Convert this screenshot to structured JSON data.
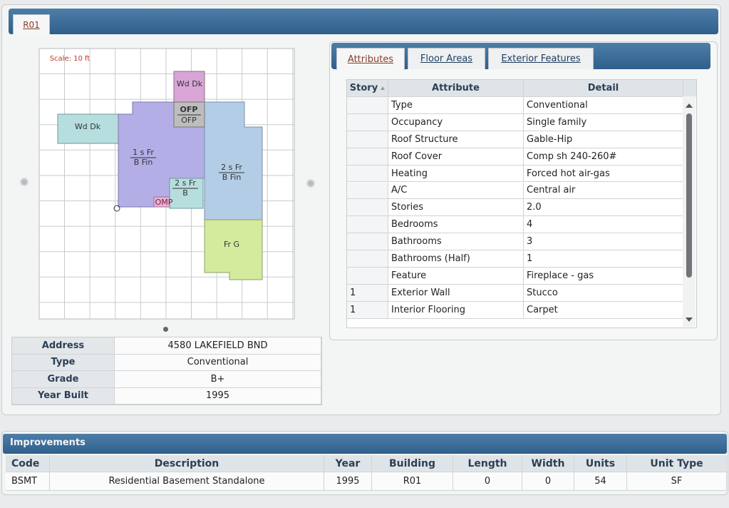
{
  "tab": "R01",
  "sketch": {
    "scale": "Scale: 10 ft",
    "labels": [
      "Wd Dk",
      "OFP",
      "OFP",
      "Wd Dk",
      "1 s Fr",
      "B Fin",
      "2 s Fr",
      "B Fin",
      "2 s Fr",
      "B",
      "OMP",
      "Fr G"
    ]
  },
  "summary": {
    "rows": [
      [
        "Address",
        "4580 LAKEFIELD BND"
      ],
      [
        "Type",
        "Conventional"
      ],
      [
        "Grade",
        "B+"
      ],
      [
        "Year Built",
        "1995"
      ]
    ]
  },
  "attributes": {
    "tabs": [
      "Attributes",
      "Floor Areas",
      "Exterior Features"
    ],
    "headers": [
      "Story",
      "Attribute",
      "Detail"
    ],
    "rows": [
      {
        "attribute": "Type",
        "detail": "Conventional"
      },
      {
        "attribute": "Occupancy",
        "detail": "Single family"
      },
      {
        "attribute": "Roof Structure",
        "detail": "Gable-Hip"
      },
      {
        "attribute": "Roof Cover",
        "detail": "Comp sh 240-260#"
      },
      {
        "attribute": "Heating",
        "detail": "Forced hot air-gas"
      },
      {
        "attribute": "A/C",
        "detail": "Central air"
      },
      {
        "attribute": "Stories",
        "detail": "2.0"
      },
      {
        "attribute": "Bedrooms",
        "detail": "4"
      },
      {
        "attribute": "Bathrooms",
        "detail": "3"
      },
      {
        "attribute": "Bathrooms (Half)",
        "detail": "1"
      },
      {
        "attribute": "Feature",
        "detail": "Fireplace - gas"
      },
      {
        "story": "1",
        "attribute": "Exterior Wall",
        "detail": "Stucco"
      },
      {
        "story": "1",
        "attribute": "Interior Flooring",
        "detail": "Carpet"
      }
    ]
  },
  "improvements": {
    "title": "Improvements",
    "headers": [
      "Code",
      "Description",
      "Year",
      "Building",
      "Length",
      "Width",
      "Units",
      "Unit Type"
    ],
    "rows": [
      [
        "BSMT",
        "Residential Basement Standalone",
        "1995",
        "R01",
        "0",
        "0",
        "54",
        "SF"
      ]
    ]
  }
}
